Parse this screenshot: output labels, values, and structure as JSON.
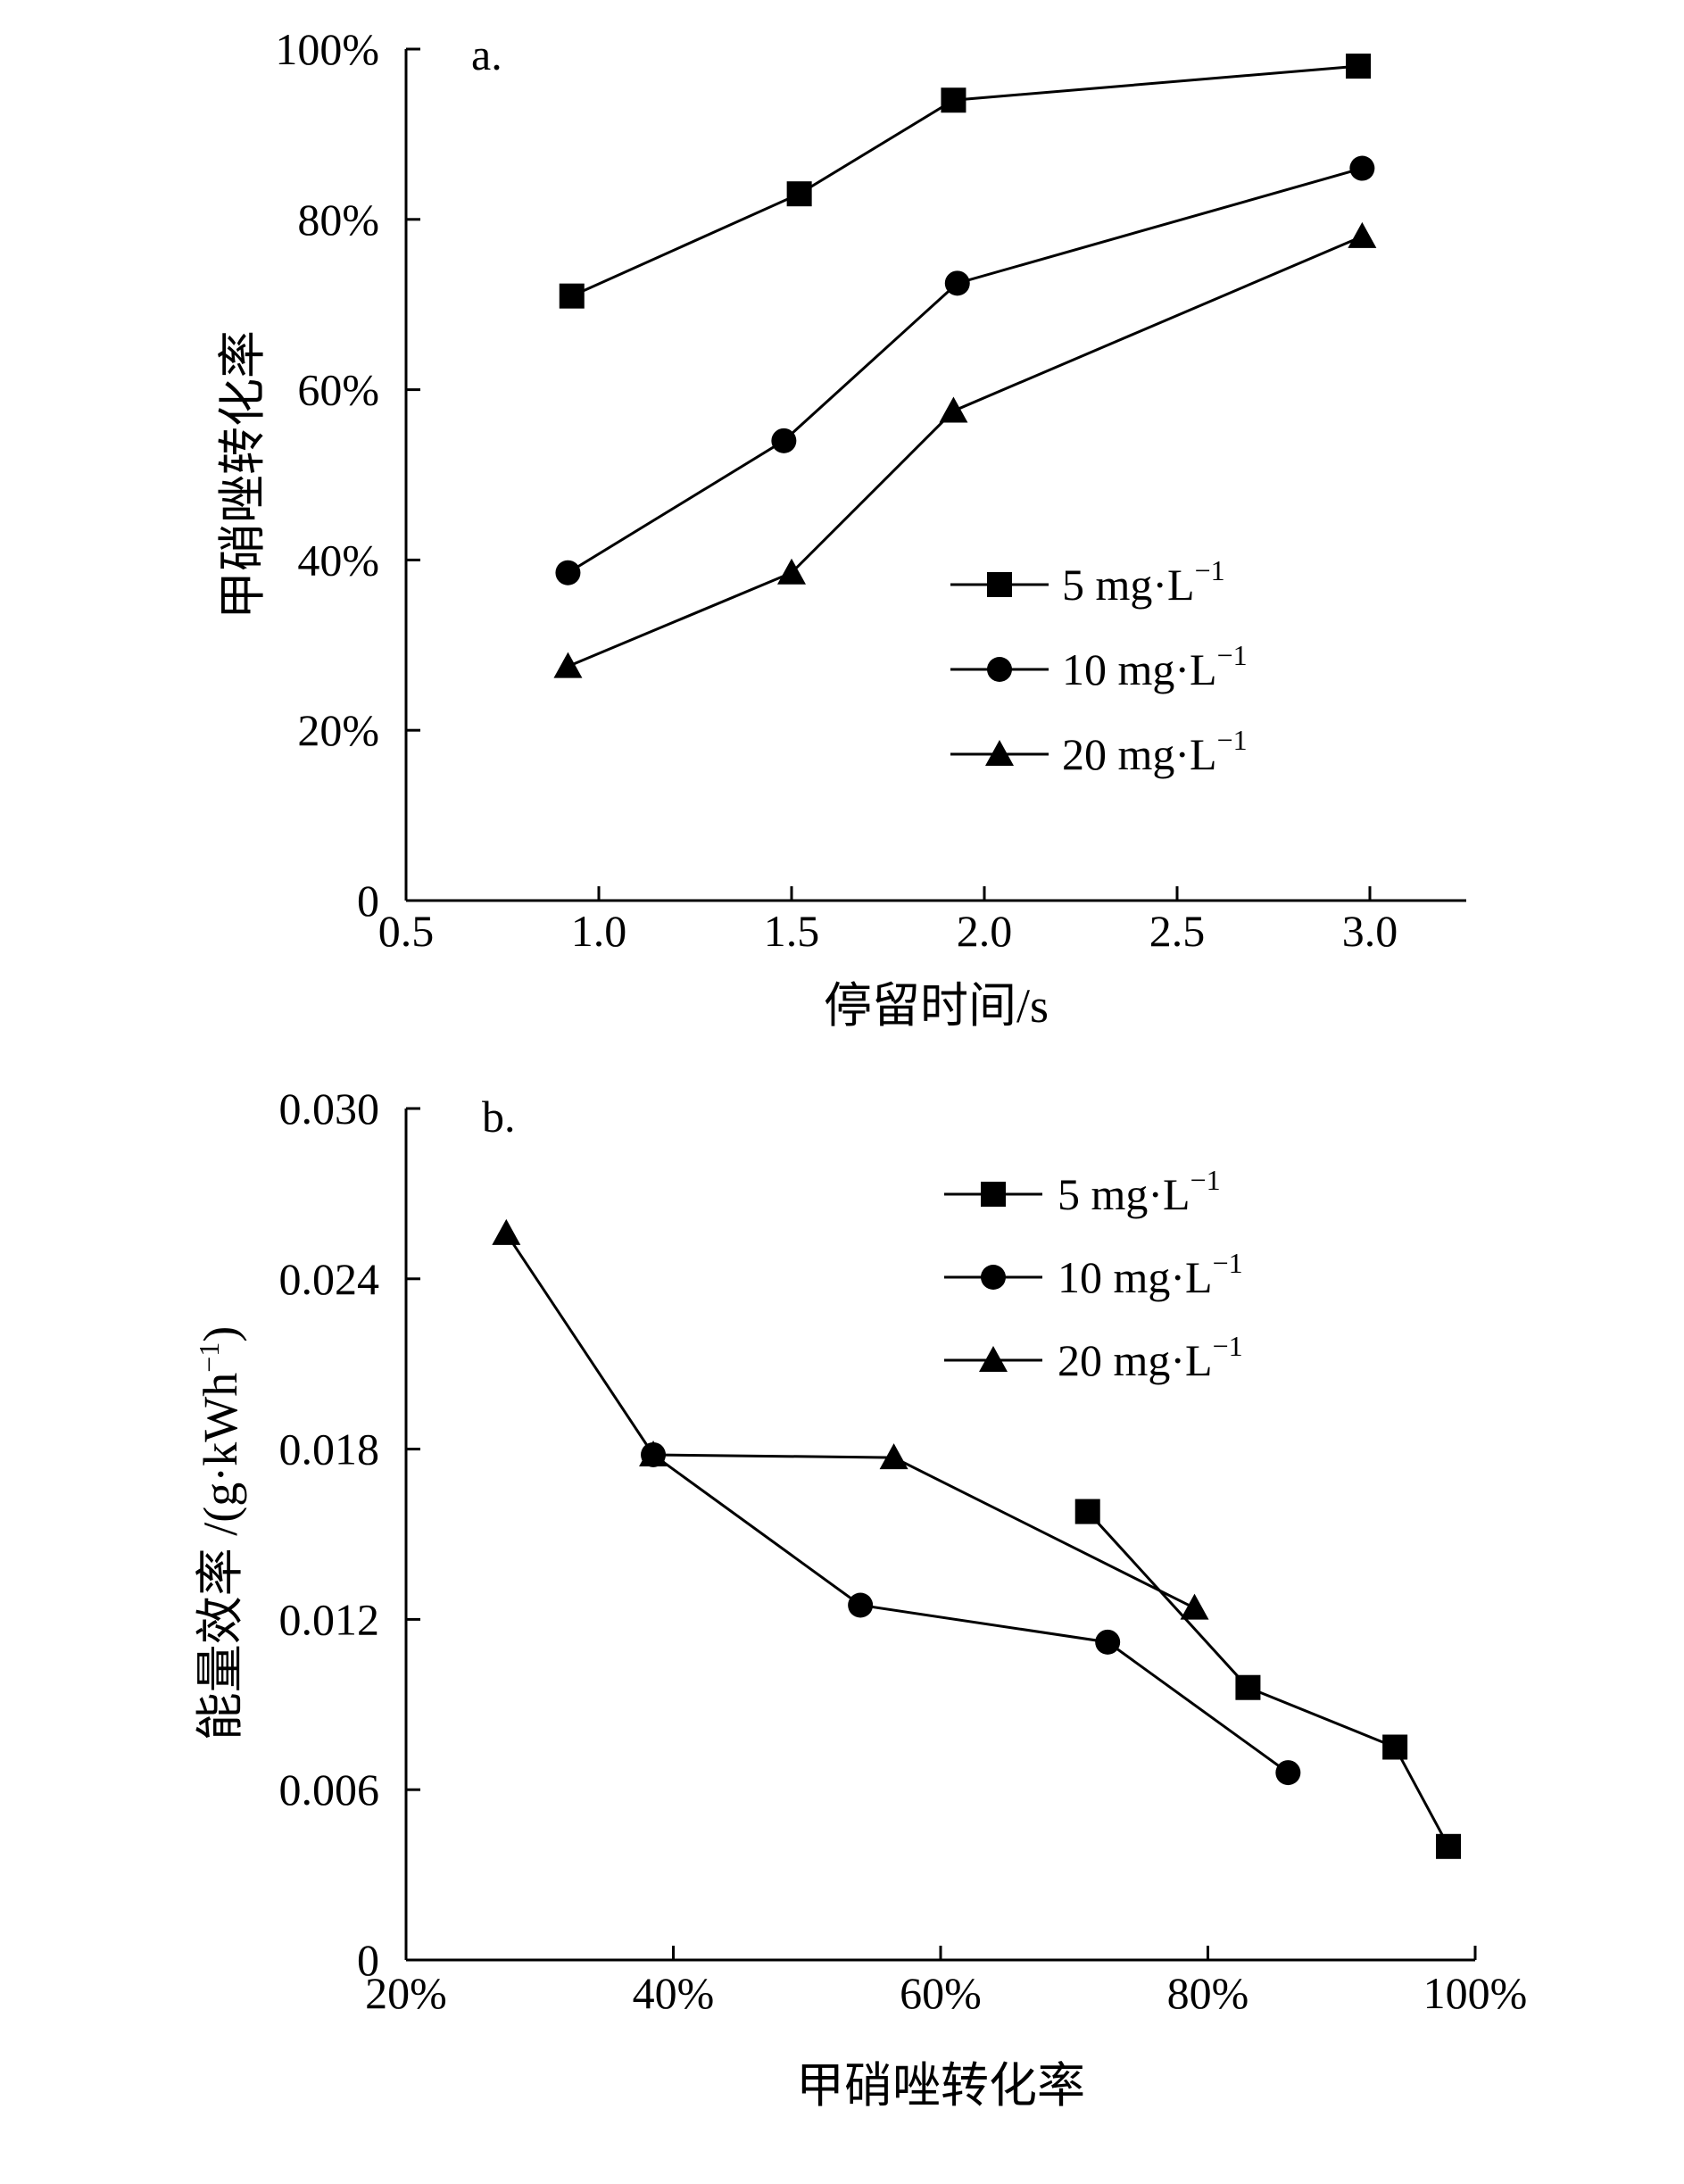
{
  "chart_data": [
    {
      "type": "line",
      "panel_label": "a.",
      "xlabel": "停留时间/s",
      "ylabel": "甲硝唑转化率",
      "xlim": [
        0.5,
        3.25
      ],
      "ylim": [
        0,
        100
      ],
      "xticks": [
        0.5,
        1.0,
        1.5,
        2.0,
        2.5,
        3.0
      ],
      "xtick_labels": [
        "0.5",
        "1.0",
        "1.5",
        "2.0",
        "2.5",
        "3.0"
      ],
      "yticks": [
        0,
        20,
        40,
        60,
        80,
        100
      ],
      "ytick_labels": [
        "0",
        "20%",
        "40%",
        "60%",
        "80%",
        "100%"
      ],
      "legend_position": "center-right",
      "series": [
        {
          "name": "5 mg·L",
          "name_sup": "−1",
          "marker": "square",
          "x": [
            0.93,
            1.52,
            1.92,
            2.97
          ],
          "y": [
            71,
            83,
            94,
            98
          ]
        },
        {
          "name": "10 mg·L",
          "name_sup": "−1",
          "marker": "circle",
          "x": [
            0.92,
            1.48,
            1.93,
            2.98
          ],
          "y": [
            38.5,
            54,
            72.5,
            86
          ]
        },
        {
          "name": "20 mg·L",
          "name_sup": "−1",
          "marker": "triangle",
          "x": [
            0.92,
            1.5,
            1.92,
            2.98
          ],
          "y": [
            27.5,
            38.5,
            57.5,
            78
          ]
        }
      ]
    },
    {
      "type": "line",
      "panel_label": "b.",
      "xlabel": "甲硝唑转化率",
      "ylabel": "能量效率 /(g·kWh",
      "ylabel_sup": "−1",
      "ylabel_end": ")",
      "xlim": [
        20,
        100
      ],
      "ylim": [
        0,
        0.03
      ],
      "xticks": [
        20,
        40,
        60,
        80,
        100
      ],
      "xtick_labels": [
        "20%",
        "40%",
        "60%",
        "80%",
        "100%"
      ],
      "yticks": [
        0,
        0.006,
        0.012,
        0.018,
        0.024,
        0.03
      ],
      "ytick_labels": [
        "0",
        "0.006",
        "0.012",
        "0.018",
        "0.024",
        "0.030"
      ],
      "legend_position": "top-right",
      "series": [
        {
          "name": "5 mg·L",
          "name_sup": "−1",
          "marker": "square",
          "x": [
            71,
            83,
            94,
            98
          ],
          "y": [
            0.0158,
            0.0096,
            0.0075,
            0.004
          ]
        },
        {
          "name": "10 mg·L",
          "name_sup": "−1",
          "marker": "circle",
          "x": [
            38.5,
            54,
            72.5,
            86
          ],
          "y": [
            0.0178,
            0.0125,
            0.0112,
            0.0066
          ]
        },
        {
          "name": "20 mg·L",
          "name_sup": "−1",
          "marker": "triangle",
          "x": [
            27.5,
            38.5,
            56.5,
            79
          ],
          "y": [
            0.0256,
            0.0178,
            0.0177,
            0.0124
          ]
        }
      ]
    }
  ]
}
